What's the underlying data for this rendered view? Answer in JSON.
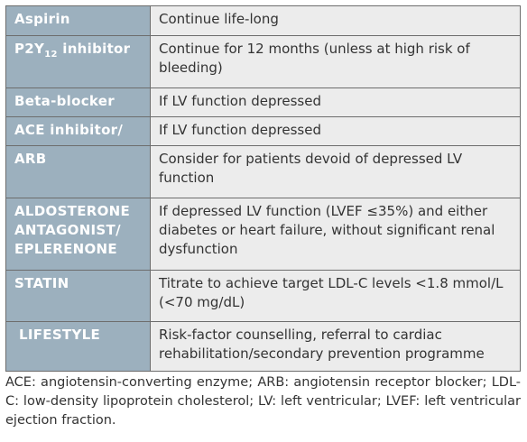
{
  "table": {
    "rows": [
      [
        "Aspirin",
        "Continue life-long"
      ],
      [
        [
          "P2Y",
          "12",
          " inhibitor"
        ],
        "Continue for 12 months (unless at high risk of bleeding)"
      ],
      [
        "Beta-blocker",
        "If LV function depressed"
      ],
      [
        "ACE inhibitor/",
        "If LV function depressed"
      ],
      [
        "ARB",
        "Consider for patients devoid of depressed LV function"
      ],
      [
        "ALDOSTERONE ANTAGONIST/ EPLERENONE",
        "If depressed LV function (LVEF ≤35%) and either diabetes or heart failure, without significant renal dysfunction"
      ],
      [
        "STATIN",
        "Titrate to achieve target LDL-C levels <1.8 mmol/L (<70 mg/dL)"
      ],
      [
        "LIFESTYLE",
        "Risk-factor counselling, referral to cardiac rehabilitation/secondary prevention programme"
      ]
    ]
  },
  "footnote": "ACE: angiotensin-converting enzyme; ARB: angiotensin receptor blocker; LDL-C: low-density lipoprotein cholesterol; LV: left ventricular; LVEF: left ventricular ejection fraction."
}
